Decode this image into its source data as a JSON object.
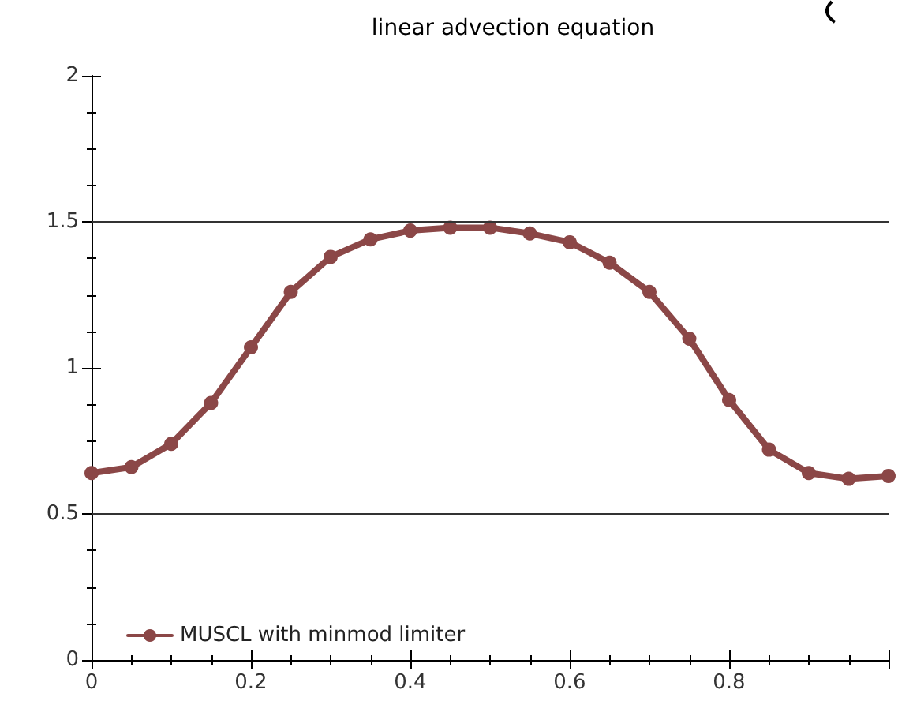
{
  "chart_data": {
    "type": "line",
    "title": "linear advection equation",
    "x": [
      0,
      0.05,
      0.1,
      0.15,
      0.2,
      0.25,
      0.3,
      0.35,
      0.4,
      0.45,
      0.5,
      0.55,
      0.6,
      0.65,
      0.7,
      0.75,
      0.8,
      0.85,
      0.9,
      0.95,
      1.0
    ],
    "series": [
      {
        "name": "MUSCL with minmod limiter",
        "color": "#8b4747",
        "values": [
          0.64,
          0.66,
          0.74,
          0.88,
          1.07,
          1.26,
          1.38,
          1.44,
          1.47,
          1.48,
          1.48,
          1.46,
          1.43,
          1.36,
          1.26,
          1.1,
          0.89,
          0.72,
          0.64,
          0.62,
          0.63
        ]
      }
    ],
    "xlim": [
      0,
      1
    ],
    "xticks": [
      0,
      0.2,
      0.4,
      0.6,
      0.8,
      {
        "value": 1,
        "label": null
      }
    ],
    "ylim": [
      0,
      2
    ],
    "yticks": [
      0,
      0.5,
      1,
      1.5,
      2
    ],
    "ref_lines": [
      {
        "axis": "y",
        "value": 0.5
      },
      {
        "axis": "y",
        "value": 1.5
      }
    ],
    "grid": false,
    "legend": "bottom left",
    "marker": "circle",
    "line_style": "solid"
  }
}
